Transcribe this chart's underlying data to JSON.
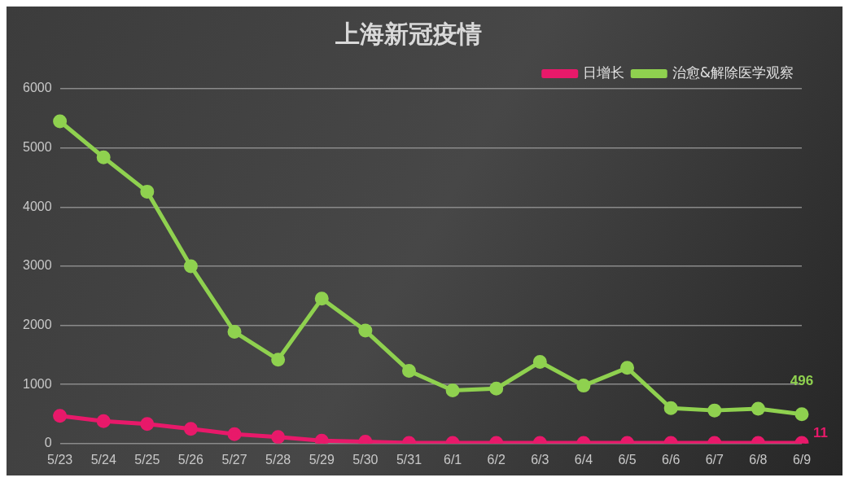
{
  "chart_data": {
    "type": "line",
    "title": "上海新冠疫情",
    "categories": [
      "5/23",
      "5/24",
      "5/25",
      "5/26",
      "5/27",
      "5/28",
      "5/29",
      "5/30",
      "5/31",
      "6/1",
      "6/2",
      "6/3",
      "6/4",
      "6/5",
      "6/6",
      "6/7",
      "6/8",
      "6/9"
    ],
    "series": [
      {
        "name": "日增长",
        "color": "#e8196a",
        "values": [
          470,
          380,
          330,
          250,
          160,
          110,
          50,
          30,
          10,
          10,
          10,
          10,
          10,
          10,
          10,
          10,
          10,
          11
        ],
        "value_labels": [
          null,
          null,
          null,
          null,
          null,
          null,
          null,
          null,
          null,
          null,
          null,
          null,
          null,
          null,
          null,
          null,
          null,
          "11"
        ]
      },
      {
        "name": "治愈&解除医学观察",
        "color": "#8fd14f",
        "values": [
          5450,
          4840,
          4260,
          3000,
          1890,
          1420,
          2450,
          1910,
          1230,
          900,
          930,
          1380,
          980,
          1280,
          600,
          560,
          590,
          496
        ],
        "value_labels": [
          null,
          null,
          null,
          null,
          null,
          null,
          null,
          null,
          null,
          null,
          null,
          null,
          null,
          null,
          null,
          null,
          null,
          "496"
        ]
      }
    ],
    "ylim": [
      0,
      6000
    ],
    "yticks": [
      0,
      1000,
      2000,
      3000,
      4000,
      5000,
      6000
    ],
    "grid": "y",
    "legend": "top right",
    "marker": "circle",
    "line_style": "solid"
  }
}
